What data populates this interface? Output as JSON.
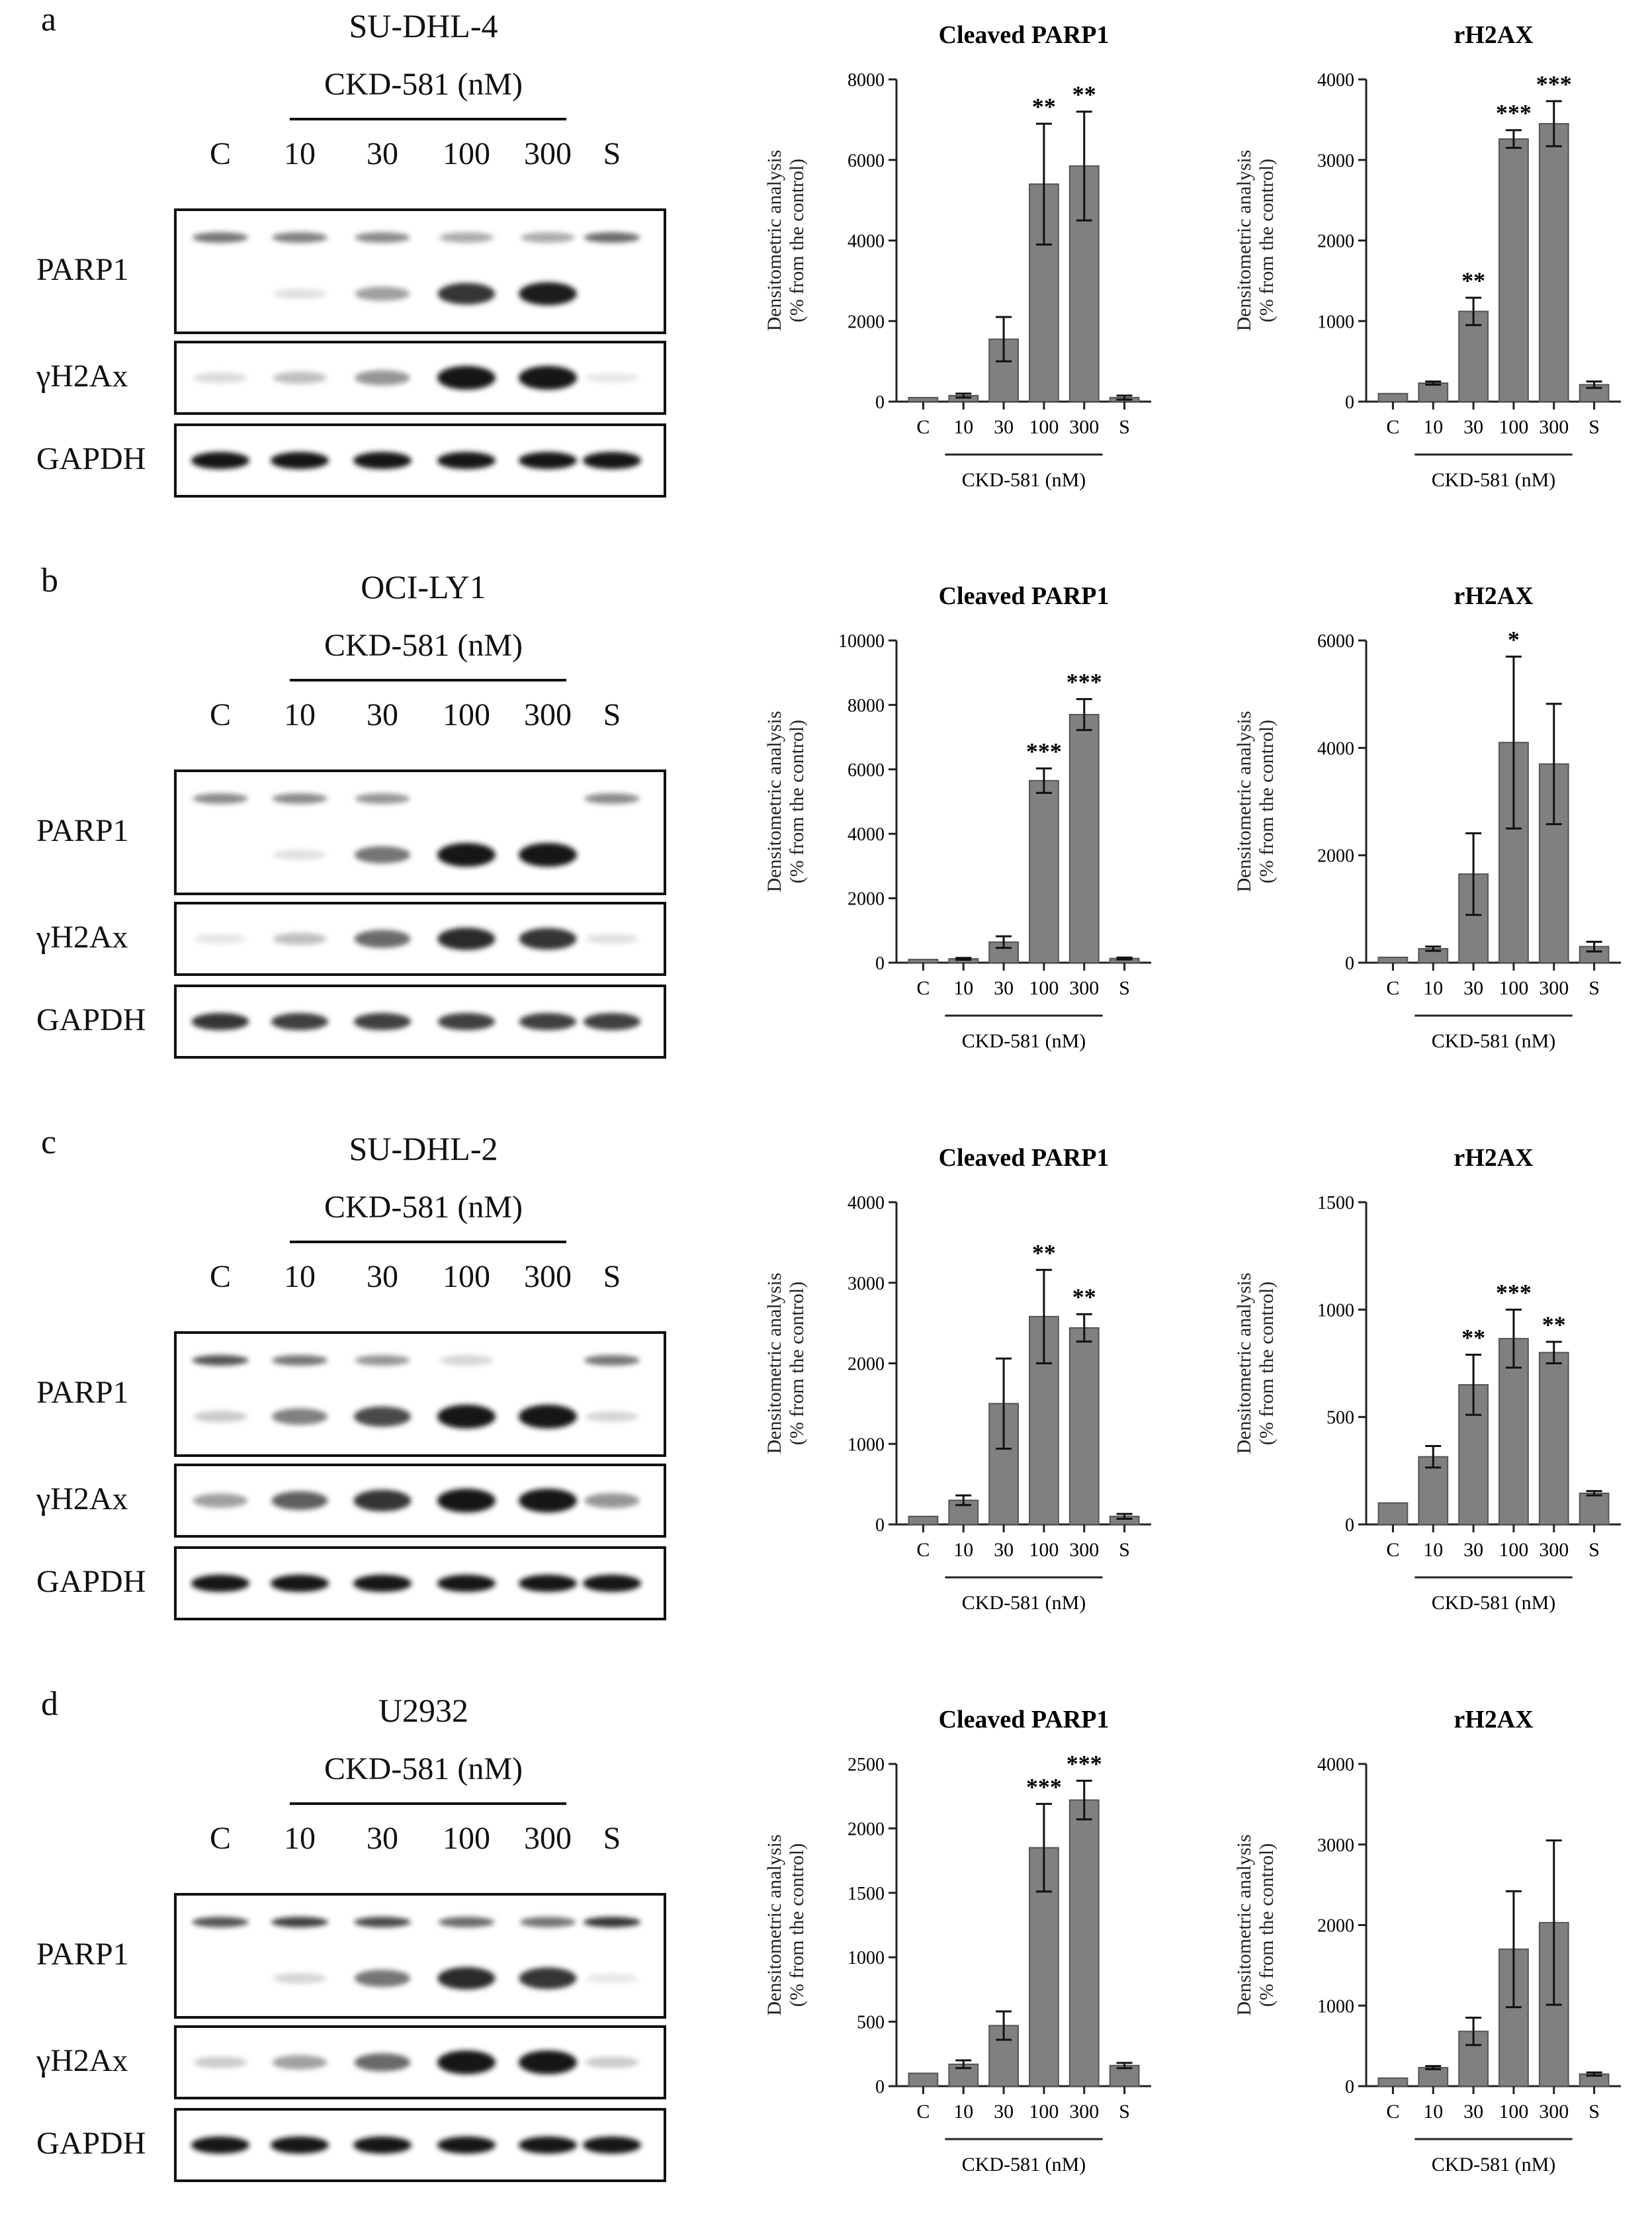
{
  "lanes": [
    "C",
    "10",
    "30",
    "100",
    "300",
    "S"
  ],
  "blot_rows": [
    "PARP1",
    "γH2Ax",
    "GAPDH"
  ],
  "drug_label": "CKD-581 (nM)",
  "y_axis_label_1": "Densitometric analysis",
  "y_axis_label_2": "(% from the control)",
  "bar_color": "#808080",
  "panels": [
    {
      "label": "a",
      "cell_line": "SU-DHL-4",
      "blot_intensity": {
        "parp_full": [
          0.55,
          0.5,
          0.45,
          0.3,
          0.3,
          0.6
        ],
        "parp_cleaved": [
          0.0,
          0.05,
          0.35,
          0.85,
          0.95,
          0.0
        ],
        "h2ax": [
          0.08,
          0.2,
          0.4,
          1.0,
          1.0,
          0.02
        ],
        "gapdh": [
          1.0,
          1.0,
          1.0,
          1.0,
          1.0,
          1.0
        ]
      },
      "charts": [
        {
          "type": "bar",
          "title": "Cleaved PARP1",
          "categories": [
            "C",
            "10",
            "30",
            "100",
            "300",
            "S"
          ],
          "values": [
            100,
            150,
            1550,
            5400,
            5850,
            100
          ],
          "errors": [
            0,
            50,
            550,
            1500,
            1350,
            50
          ],
          "significance": [
            "",
            "",
            "",
            "**",
            "**",
            ""
          ],
          "ylim": [
            0,
            8000
          ],
          "yticks": [
            "0",
            "2000",
            "4000",
            "6000",
            "8000"
          ],
          "xlabel": "CKD-581 (nM)"
        },
        {
          "type": "bar",
          "title": "rH2AX",
          "categories": [
            "C",
            "10",
            "30",
            "100",
            "300",
            "S"
          ],
          "values": [
            100,
            230,
            1120,
            3260,
            3450,
            210
          ],
          "errors": [
            0,
            20,
            170,
            110,
            280,
            40
          ],
          "significance": [
            "",
            "",
            "**",
            "***",
            "***",
            ""
          ],
          "ylim": [
            0,
            4000
          ],
          "yticks": [
            "0",
            "1000",
            "2000",
            "3000",
            "4000"
          ],
          "xlabel": "CKD-581 (nM)"
        }
      ]
    },
    {
      "label": "b",
      "cell_line": "OCI-LY1",
      "blot_intensity": {
        "parp_full": [
          0.45,
          0.45,
          0.4,
          0.0,
          0.0,
          0.45
        ],
        "parp_cleaved": [
          0.0,
          0.05,
          0.55,
          1.0,
          1.0,
          0.0
        ],
        "h2ax": [
          0.03,
          0.2,
          0.6,
          0.9,
          0.85,
          0.05
        ],
        "gapdh": [
          0.85,
          0.8,
          0.8,
          0.8,
          0.8,
          0.8
        ]
      },
      "charts": [
        {
          "type": "bar",
          "title": "Cleaved PARP1",
          "categories": [
            "C",
            "10",
            "30",
            "100",
            "300",
            "S"
          ],
          "values": [
            100,
            120,
            640,
            5650,
            7700,
            130
          ],
          "errors": [
            0,
            30,
            180,
            380,
            480,
            30
          ],
          "significance": [
            "",
            "",
            "",
            "***",
            "***",
            ""
          ],
          "ylim": [
            0,
            10000
          ],
          "yticks": [
            "0",
            "2000",
            "4000",
            "6000",
            "8000",
            "10000"
          ],
          "xlabel": "CKD-581 (nM)"
        },
        {
          "type": "bar",
          "title": "rH2AX",
          "categories": [
            "C",
            "10",
            "30",
            "100",
            "300",
            "S"
          ],
          "values": [
            100,
            260,
            1650,
            4100,
            3700,
            300
          ],
          "errors": [
            0,
            40,
            760,
            1600,
            1120,
            90
          ],
          "significance": [
            "",
            "",
            "",
            "*",
            "",
            ""
          ],
          "ylim": [
            0,
            6000
          ],
          "yticks": [
            "0",
            "2000",
            "4000",
            "6000"
          ],
          "xlabel": "CKD-581 (nM)"
        }
      ]
    },
    {
      "label": "c",
      "cell_line": "SU-DHL-2",
      "blot_intensity": {
        "parp_full": [
          0.7,
          0.55,
          0.4,
          0.1,
          0.0,
          0.55
        ],
        "parp_cleaved": [
          0.15,
          0.5,
          0.75,
          1.0,
          1.0,
          0.1
        ],
        "h2ax": [
          0.35,
          0.65,
          0.85,
          1.0,
          1.0,
          0.4
        ],
        "gapdh": [
          1.0,
          1.0,
          1.0,
          1.0,
          1.0,
          1.0
        ]
      },
      "charts": [
        {
          "type": "bar",
          "title": "Cleaved PARP1",
          "categories": [
            "C",
            "10",
            "30",
            "100",
            "300",
            "S"
          ],
          "values": [
            100,
            300,
            1500,
            2580,
            2440,
            100
          ],
          "errors": [
            0,
            60,
            560,
            580,
            170,
            30
          ],
          "significance": [
            "",
            "",
            "",
            "**",
            "**",
            ""
          ],
          "ylim": [
            0,
            4000
          ],
          "yticks": [
            "0",
            "1000",
            "2000",
            "3000",
            "4000"
          ],
          "xlabel": "CKD-581 (nM)"
        },
        {
          "type": "bar",
          "title": "rH2AX",
          "categories": [
            "C",
            "10",
            "30",
            "100",
            "300",
            "S"
          ],
          "values": [
            100,
            315,
            650,
            865,
            800,
            145
          ],
          "errors": [
            0,
            50,
            140,
            135,
            50,
            10
          ],
          "significance": [
            "",
            "",
            "**",
            "***",
            "**",
            ""
          ],
          "ylim": [
            0,
            1500
          ],
          "yticks": [
            "0",
            "500",
            "1000",
            "1500"
          ],
          "xlabel": "CKD-581 (nM)"
        }
      ]
    },
    {
      "label": "d",
      "cell_line": "U2932",
      "blot_intensity": {
        "parp_full": [
          0.7,
          0.8,
          0.75,
          0.6,
          0.55,
          0.85
        ],
        "parp_cleaved": [
          0.0,
          0.1,
          0.55,
          0.9,
          0.85,
          0.02
        ],
        "h2ax": [
          0.15,
          0.35,
          0.6,
          1.0,
          1.0,
          0.15
        ],
        "gapdh": [
          1.0,
          1.0,
          1.0,
          1.0,
          1.0,
          1.0
        ]
      },
      "charts": [
        {
          "type": "bar",
          "title": "Cleaved PARP1",
          "categories": [
            "C",
            "10",
            "30",
            "100",
            "300",
            "S"
          ],
          "values": [
            100,
            170,
            470,
            1850,
            2220,
            160
          ],
          "errors": [
            0,
            30,
            110,
            340,
            150,
            20
          ],
          "significance": [
            "",
            "",
            "",
            "***",
            "***",
            ""
          ],
          "ylim": [
            0,
            2500
          ],
          "yticks": [
            "0",
            "500",
            "1000",
            "1500",
            "2000",
            "2500"
          ],
          "xlabel": "CKD-581 (nM)"
        },
        {
          "type": "bar",
          "title": "rH2AX",
          "categories": [
            "C",
            "10",
            "30",
            "100",
            "300",
            "S"
          ],
          "values": [
            100,
            230,
            680,
            1700,
            2030,
            150
          ],
          "errors": [
            0,
            20,
            170,
            720,
            1020,
            20
          ],
          "significance": [
            "",
            "",
            "",
            "",
            "",
            ""
          ],
          "ylim": [
            0,
            4000
          ],
          "yticks": [
            "0",
            "1000",
            "2000",
            "3000",
            "4000"
          ],
          "xlabel": "CKD-581 (nM)"
        }
      ]
    }
  ]
}
